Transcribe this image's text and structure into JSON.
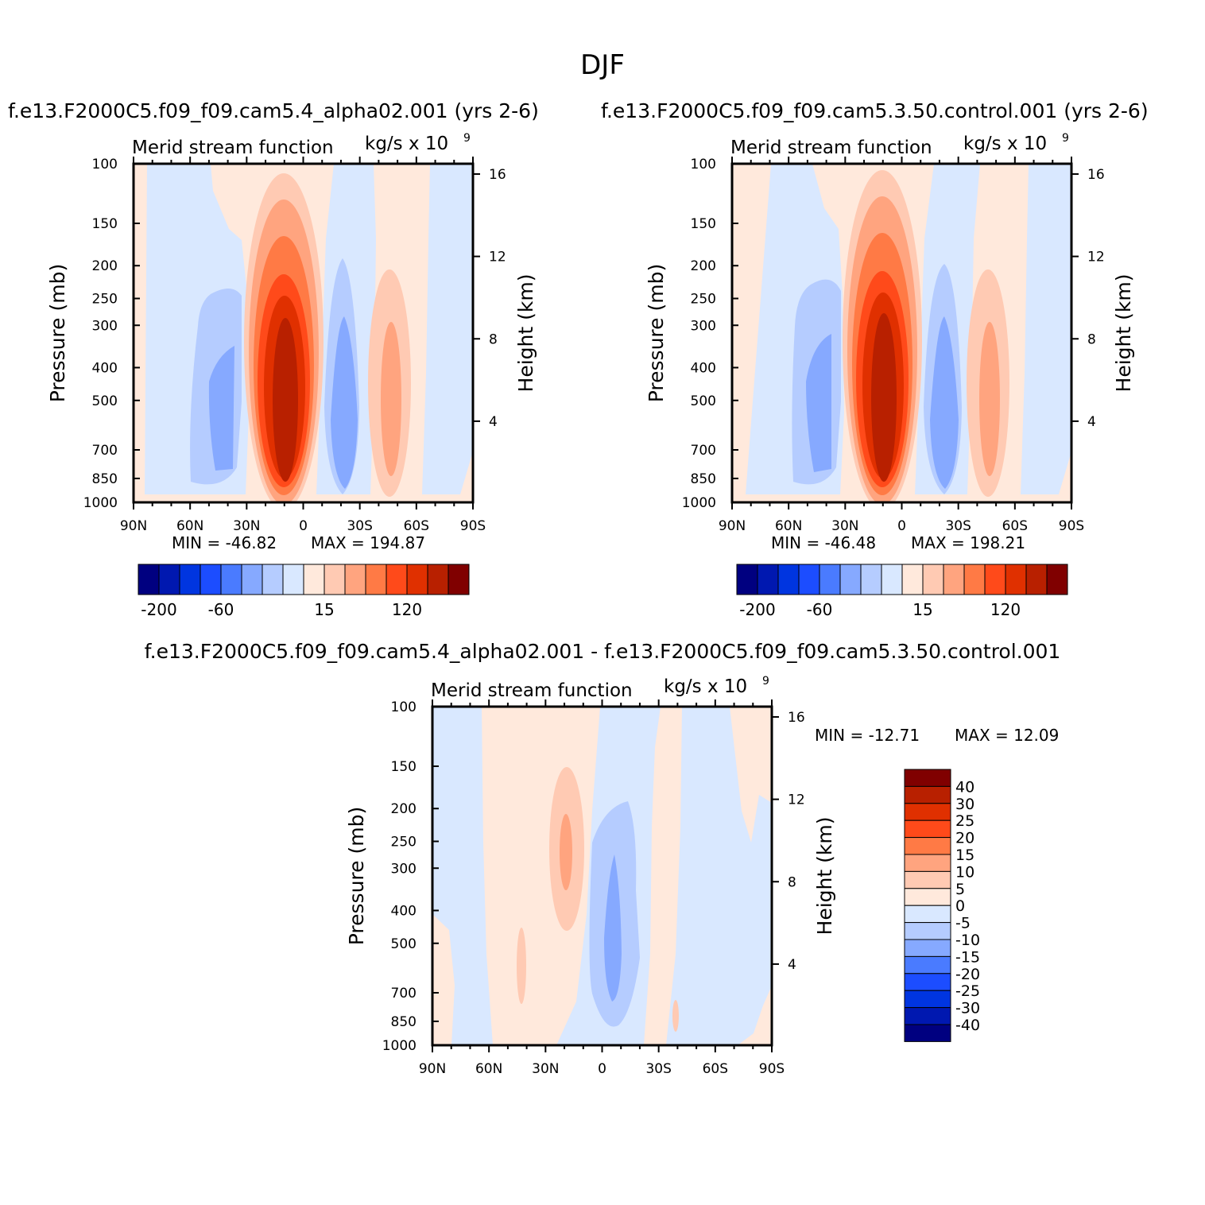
{
  "figure": {
    "title": "DJF",
    "diff_title": "f.e13.F2000C5.f09_f09.cam5.4_alpha02.001 - f.e13.F2000C5.f09_f09.cam5.3.50.control.001"
  },
  "chart_data": [
    {
      "type": "contour",
      "id": "test",
      "case_title": "f.e13.F2000C5.f09_f09.cam5.4_alpha02.001 (yrs 2-6)",
      "title_left": "Merid stream function",
      "title_right": "kg/s x 10",
      "title_right_exp": "9",
      "xlabel_ticks": [
        "90N",
        "60N",
        "30N",
        "0",
        "30S",
        "60S",
        "90S"
      ],
      "x_values": [
        90,
        60,
        30,
        0,
        -30,
        -60,
        -90
      ],
      "ylabel": "Pressure (mb)",
      "y_ticks": [
        "100",
        "150",
        "200",
        "250",
        "300",
        "400",
        "500",
        "700",
        "850",
        "1000"
      ],
      "y_values": [
        100,
        150,
        200,
        250,
        300,
        400,
        500,
        700,
        850,
        1000
      ],
      "y_right_label": "Height (km)",
      "y_right_ticks": [
        "16",
        "12",
        "8",
        "4"
      ],
      "y_right_values": [
        16,
        12,
        8,
        4
      ],
      "min_label": "MIN = -46.82",
      "max_label": "MAX = 194.87",
      "min": -46.82,
      "max": 194.87,
      "colorbar_labels": [
        "-200",
        "-60",
        "15",
        "120"
      ],
      "colorbar_label_index": [
        1,
        4,
        9,
        13
      ]
    },
    {
      "type": "contour",
      "id": "control",
      "case_title": "f.e13.F2000C5.f09_f09.cam5.3.50.control.001 (yrs 2-6)",
      "title_left": "Merid stream function",
      "title_right": "kg/s x 10",
      "title_right_exp": "9",
      "xlabel_ticks": [
        "90N",
        "60N",
        "30N",
        "0",
        "30S",
        "60S",
        "90S"
      ],
      "x_values": [
        90,
        60,
        30,
        0,
        -30,
        -60,
        -90
      ],
      "ylabel": "Pressure (mb)",
      "y_ticks": [
        "100",
        "150",
        "200",
        "250",
        "300",
        "400",
        "500",
        "700",
        "850",
        "1000"
      ],
      "y_values": [
        100,
        150,
        200,
        250,
        300,
        400,
        500,
        700,
        850,
        1000
      ],
      "y_right_label": "Height (km)",
      "y_right_ticks": [
        "16",
        "12",
        "8",
        "4"
      ],
      "y_right_values": [
        16,
        12,
        8,
        4
      ],
      "min_label": "MIN = -46.48",
      "max_label": "MAX = 198.21",
      "min": -46.48,
      "max": 198.21,
      "colorbar_labels": [
        "-200",
        "-60",
        "15",
        "120"
      ],
      "colorbar_label_index": [
        1,
        4,
        9,
        13
      ]
    },
    {
      "type": "contour",
      "id": "difference",
      "title_left": "Merid stream function",
      "title_right": "kg/s x 10",
      "title_right_exp": "9",
      "xlabel_ticks": [
        "90N",
        "60N",
        "30N",
        "0",
        "30S",
        "60S",
        "90S"
      ],
      "x_values": [
        90,
        60,
        30,
        0,
        -30,
        -60,
        -90
      ],
      "ylabel": "Pressure (mb)",
      "y_ticks": [
        "100",
        "150",
        "200",
        "250",
        "300",
        "400",
        "500",
        "700",
        "850",
        "1000"
      ],
      "y_values": [
        100,
        150,
        200,
        250,
        300,
        400,
        500,
        700,
        850,
        1000
      ],
      "y_right_label": "Height (km)",
      "y_right_ticks": [
        "16",
        "12",
        "8",
        "4"
      ],
      "y_right_values": [
        16,
        12,
        8,
        4
      ],
      "min_label": "MIN = -12.71",
      "max_label": "MAX =  12.09",
      "min": -12.71,
      "max": 12.09,
      "colorbar_labels": [
        "40",
        "30",
        "25",
        "20",
        "15",
        "10",
        "5",
        "0",
        "-5",
        "-10",
        "-15",
        "-20",
        "-25",
        "-30",
        "-40"
      ]
    }
  ],
  "colormap": [
    "#000080",
    "#0018b0",
    "#0035e0",
    "#1c4dff",
    "#4a7bff",
    "#86a9ff",
    "#b5ccff",
    "#d9e8ff",
    "#ffe9dc",
    "#ffcab3",
    "#ffa47f",
    "#ff7a45",
    "#ff4a1a",
    "#e03000",
    "#b82000",
    "#800000"
  ]
}
